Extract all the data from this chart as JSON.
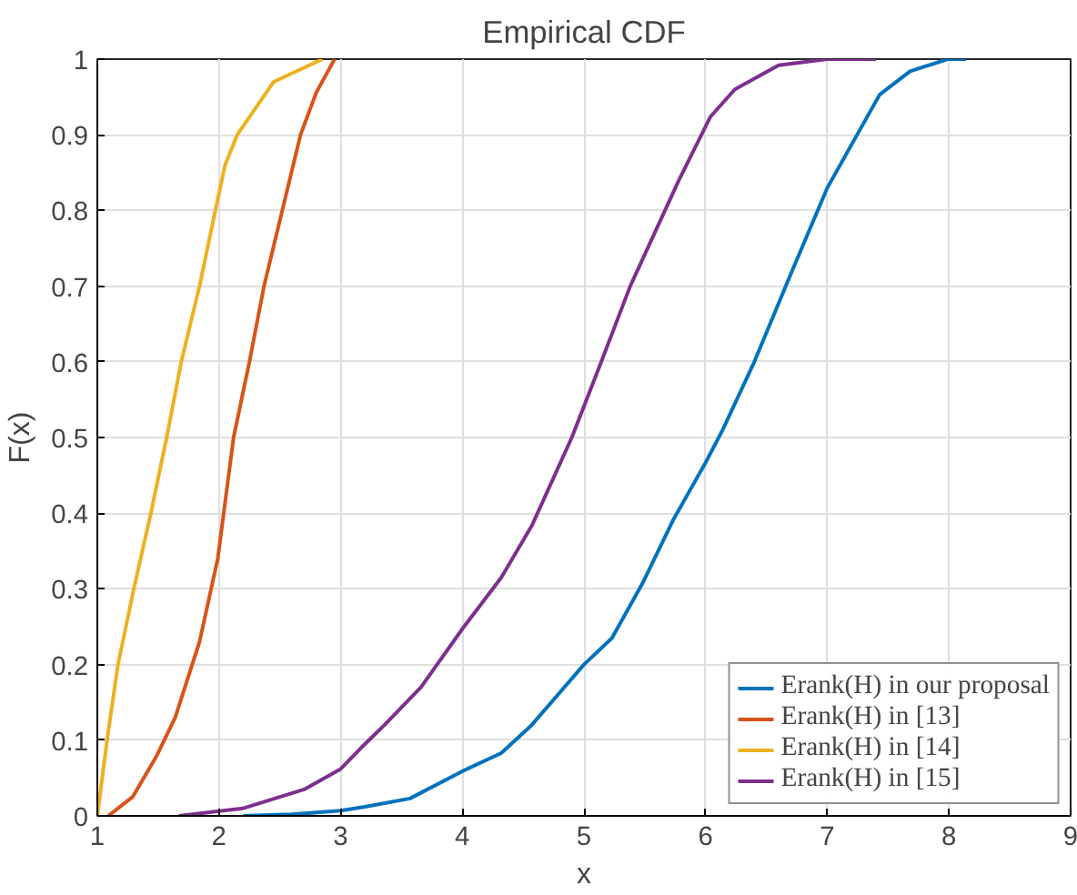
{
  "chart_data": {
    "type": "line",
    "title": "Empirical CDF",
    "xlabel": "x",
    "ylabel": "F(x)",
    "xlim": [
      1,
      9
    ],
    "xticks": [
      1,
      2,
      3,
      4,
      5,
      6,
      7,
      8,
      9
    ],
    "ylim": [
      0,
      1
    ],
    "yticks": [
      0,
      0.1,
      0.2,
      0.3,
      0.4,
      0.5,
      0.6,
      0.7,
      0.8,
      0.9,
      1
    ],
    "grid": true,
    "legend": "bottom right",
    "line_style": "solid",
    "marker": "none",
    "series": [
      {
        "name": "Erank(H) in our proposal",
        "color": "#0072bd",
        "x": [
          2.2,
          2.6,
          3.0,
          3.2,
          3.57,
          4.0,
          4.32,
          4.57,
          5.0,
          5.23,
          5.48,
          5.73,
          6.0,
          6.14,
          6.4,
          6.7,
          7.0,
          7.28,
          7.43,
          7.68,
          7.99,
          8.14
        ],
        "values": [
          0,
          0.002,
          0.007,
          0.012,
          0.023,
          0.059,
          0.083,
          0.12,
          0.2,
          0.235,
          0.307,
          0.39,
          0.467,
          0.51,
          0.6,
          0.716,
          0.83,
          0.91,
          0.953,
          0.984,
          1,
          1
        ]
      },
      {
        "name": "Erank(H) in [13]",
        "color": "#d95319",
        "x": [
          1.09,
          1.29,
          1.49,
          1.64,
          1.84,
          1.99,
          2.12,
          2.25,
          2.37,
          2.52,
          2.67,
          2.8,
          2.95
        ],
        "values": [
          0,
          0.025,
          0.08,
          0.13,
          0.23,
          0.34,
          0.5,
          0.6,
          0.7,
          0.8,
          0.9,
          0.956,
          1
        ]
      },
      {
        "name": "Erank(H) in [14]",
        "color": "#edb120",
        "x": [
          1.0,
          1.08,
          1.17,
          1.3,
          1.44,
          1.57,
          1.69,
          1.84,
          1.97,
          2.05,
          2.15,
          2.45,
          2.85
        ],
        "values": [
          0,
          0.1,
          0.2,
          0.3,
          0.4,
          0.5,
          0.6,
          0.7,
          0.8,
          0.86,
          0.9,
          0.97,
          1
        ]
      },
      {
        "name": "Erank(H) in [15]",
        "color": "#7e2f8e",
        "x": [
          1.67,
          2.2,
          2.7,
          3.0,
          3.2,
          3.36,
          3.66,
          4.0,
          4.32,
          4.57,
          4.9,
          5.13,
          5.38,
          5.58,
          5.78,
          6.04,
          6.24,
          6.6,
          7.0,
          7.4
        ],
        "values": [
          0,
          0.01,
          0.035,
          0.062,
          0.095,
          0.12,
          0.17,
          0.247,
          0.315,
          0.383,
          0.5,
          0.595,
          0.7,
          0.77,
          0.84,
          0.924,
          0.96,
          0.992,
          1,
          1
        ]
      }
    ]
  }
}
